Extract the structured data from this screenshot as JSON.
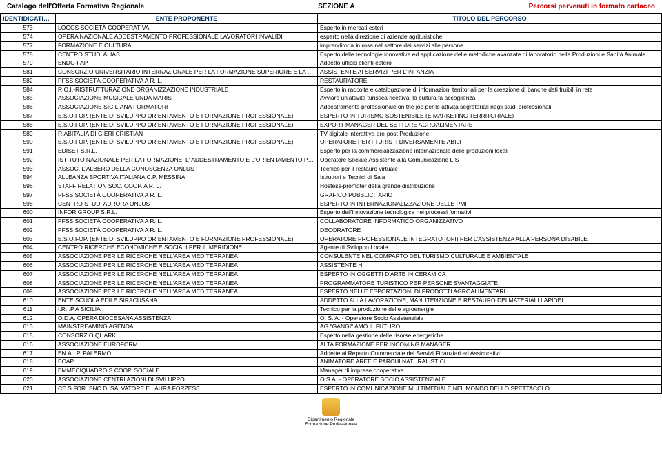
{
  "header": {
    "left": "Catalogo dell'Offerta Formativa Regionale",
    "center": "SEZIONE A",
    "right": "Percorsi pervenuti in formato cartaceo"
  },
  "columns": {
    "id": "IDENTIDICATIVO SCHEDA",
    "ente": "ENTE PROPONENTE",
    "titolo": "TITOLO DEL PERCORSO"
  },
  "rows": [
    {
      "id": "573",
      "ente": "LOGOS SOCIETÀ COOPERATIVA",
      "titolo": "Esperto in mercati esteri"
    },
    {
      "id": "574",
      "ente": "OPERA NAZIONALE ADDESTRAMENTO PROFESSIONALE LAVORATORI INVALIDI",
      "titolo": "esperto nella direzione di aziende agrituristiche"
    },
    {
      "id": "577",
      "ente": "FORMAZIONE E CULTURA",
      "titolo": "imprenditoria in rosa nel settore dei servizi alle persone"
    },
    {
      "id": "578",
      "ente": "CENTRO STUDI ALIAS",
      "titolo": "Esperto delle tecnologie innovative ed applicazione delle metodiche avanzate di laboratorio nelle Produzioni e Sanità Animale"
    },
    {
      "id": "579",
      "ente": "ENDO-FAP",
      "titolo": "Addetto ufficio clienti estero"
    },
    {
      "id": "581",
      "ente": "CONSORZIO UNIVERSITARIO INTERNAZIONALE PER LA FORMAZIONE SUPERIORE E LA RICERCA",
      "titolo": "ASSISTENTE AI SERVIZI PER L'INFANZIA"
    },
    {
      "id": "582",
      "ente": "PFSS SOCIETÀ COOPERATIVA A R. L.",
      "titolo": "RESTAURATORE"
    },
    {
      "id": "584",
      "ente": "R.O.I.-RISTRUTTURAZIONE ORGANIZZAZIONE INDUSTRIALE",
      "titolo": "Esperto in raccolta e catalogazione di informazioni territoriali per la creazione di banche dati fruibili in rete"
    },
    {
      "id": "585",
      "ente": "ASSOCIAZIONE MUSICALE UNDA MARIS",
      "titolo": "Avviare un'attività turistica ricettiva: la cultura fa accoglienza"
    },
    {
      "id": "586",
      "ente": "ASSOCIAZIONE SICILIANA FORMATORI",
      "titolo": "Addestramento professionale on the job per le attività segretariali negli studi professionali"
    },
    {
      "id": "587",
      "ente": "E.S.O.FOP. (ENTE DI SVILUPPO ORIENTAMENTO E FORMAZIONE PROFESSIONALE)",
      "titolo": "ESPERTO IN TURISMO SOSTENIBILE (E MARKETING TERRITORIALE)"
    },
    {
      "id": "588",
      "ente": "E.S.O.FOP. (ENTE DI SVILUPPO ORIENTAMENTO E FORMAZIONE PROFESSIONALE)",
      "titolo": "EXPORT MANAGER DEL SETTORE AGROALIMENTARE"
    },
    {
      "id": "589",
      "ente": "RIABITALIA DI GIERI CRISTIAN",
      "titolo": "TV digitale interattiva pre-post Produzione"
    },
    {
      "id": "590",
      "ente": "E.S.O.FOP. (ENTE DI SVILUPPO ORIENTAMENTO E FORMAZIONE PROFESSIONALE)",
      "titolo": "OPERATORE PER I TURISTI DIVERSAMENTE ABILI"
    },
    {
      "id": "591",
      "ente": "EDISET S.R.L.",
      "titolo": "Esperto per la commercializzazione internazionale delle produzioni locali"
    },
    {
      "id": "592",
      "ente": "ISTITUTO NAZIONALE PER LA FORMAZIONE, L' ADDESTRAMENTO E L'ORIENTAMENTO PROFESSIONALE",
      "titolo": "Operatore Sociale Assistente alla Comunicazione LIS"
    },
    {
      "id": "593",
      "ente": "ASSOC. L'ALBERO DELLA CONOSCENZA ONLUS",
      "titolo": "Tecnico per il restauro virtuale"
    },
    {
      "id": "594",
      "ente": "ALLEANZA SPORTIVA ITALIANA C.P. MESSINA",
      "titolo": "Istruttori e Tecnici di Sala"
    },
    {
      "id": "596",
      "ente": "STAFF RELATION SOC. COOP. A R. L.",
      "titolo": "Hostess-promoter della grande distribuzione"
    },
    {
      "id": "597",
      "ente": "PFSS SOCIETÀ COOPERATIVA A R. L.",
      "titolo": "GRAFICO PUBBLICITARIO"
    },
    {
      "id": "598",
      "ente": "CENTRO STUDI AURORA ONLUS",
      "titolo": "ESPERTO IN INTERNAZIONALIZZAZIONE DELLE PMI"
    },
    {
      "id": "600",
      "ente": "INFOR GROUP S.R.L.",
      "titolo": " Esperto dell'innovazione tecnologica nei processi formativi"
    },
    {
      "id": "601",
      "ente": "PFSS SOCIETÀ COOPERATIVA A R. L.",
      "titolo": "COLLABORATORE  INFORMATICO  ORGANIZZATIVO"
    },
    {
      "id": "602",
      "ente": "PFSS SOCIETÀ COOPERATIVA A R. L.",
      "titolo": "DECORATORE"
    },
    {
      "id": "603",
      "ente": "E.S.O.FOP. (ENTE DI SVILUPPO ORIENTAMENTO E FORMAZIONE PROFESSIONALE)",
      "titolo": "OPERATORE PROFESSIONALE INTEGRATO (OPI) PER L'ASSISTENZA ALLA PERSONA DISABILE"
    },
    {
      "id": "604",
      "ente": "CENTRO RICERCHE ECONOMICHE E SOCIALI PER IL MERIDIONE",
      "titolo": "Agente di Sviluppo Locale"
    },
    {
      "id": "605",
      "ente": "ASSOCIAZIONE PER LE RICERCHE NELL'AREA MEDITERRANEA",
      "titolo": "CONSULENTE NEL COMPARTO DEL TURISMO CULTURALE E AMBIENTALE"
    },
    {
      "id": "606",
      "ente": "ASSOCIAZIONE PER LE RICERCHE NELL'AREA MEDITERRANEA",
      "titolo": "ASSISTENTE H"
    },
    {
      "id": "607",
      "ente": "ASSOCIAZIONE PER LE RICERCHE NELL'AREA MEDITERRANEA",
      "titolo": "ESPERTO  IN  OGGETTI D'ARTE IN CERAMICA"
    },
    {
      "id": "608",
      "ente": "ASSOCIAZIONE PER LE RICERCHE NELL'AREA MEDITERRANEA",
      "titolo": "PROGRAMMATORE TURISTICO PER PERSONE SVANTAGGIATE"
    },
    {
      "id": "609",
      "ente": "ASSOCIAZIONE PER LE RICERCHE NELL'AREA MEDITERRANEA",
      "titolo": "ESPERTO NELLE ESPORTAZIONI DI PRODOTTI AGROALIMENTARI"
    },
    {
      "id": "610",
      "ente": "ENTE SCUOLA EDILE SIRACUSANA",
      "titolo": "ADDETTO ALLA LAVORAZIONE, MANUTENZIONE E RESTAURO DEI MATERIALI LAPIDEI"
    },
    {
      "id": "611",
      "ente": "I.R.I.P.A SICILIA",
      "titolo": "Tecnico per la produzione delle agroenergie"
    },
    {
      "id": "612",
      "ente": "O.D.A. OPERA DIOCESANA ASSISTENZA",
      "titolo": "O. S. A. - Operatore Socio Assistenziale"
    },
    {
      "id": "613",
      "ente": "MAINSTREAMING AGENDA",
      "titolo": "AG \"GANGI\" AMO IL FUTURO"
    },
    {
      "id": "615",
      "ente": "CONSORZIO QUARK",
      "titolo": "Esperto nella gestione delle risorse energetiche"
    },
    {
      "id": "616",
      "ente": "ASSOCIAZIONE EUROFORM",
      "titolo": "ALTA FORMAZIONE PER INCOMING MANAGER"
    },
    {
      "id": "617",
      "ente": "EN.A.I.P. PALERMO",
      "titolo": "Addette al Reparto Commerciale dei Servizi Finanziari ed Assicurativi"
    },
    {
      "id": "618",
      "ente": "ECAP",
      "titolo": "ANIMATORE AREE E PARCHI NATURALISTICI"
    },
    {
      "id": "619",
      "ente": "EMMECIQUADRO S.COOP. SOCIALE",
      "titolo": "Manager di imprese cooperative"
    },
    {
      "id": "620",
      "ente": "ASSOCIAZIONE CENTRI AZIONI DI SVILUPPO",
      "titolo": "O.S.A. - OPERATORE SOCIO ASSISTENZIALE"
    },
    {
      "id": "621",
      "ente": "CE.S.FOR. SNC DI SALVATORE E LAURA FORZESE",
      "titolo": "ESPERTO IN COMUNICAZIONE MULTIMEDIALE NEL MONDO DELLO SPETTACOLO"
    }
  ],
  "footer": {
    "line1": "Dipartimento Regionale",
    "line2": "Formazione Professionale"
  }
}
